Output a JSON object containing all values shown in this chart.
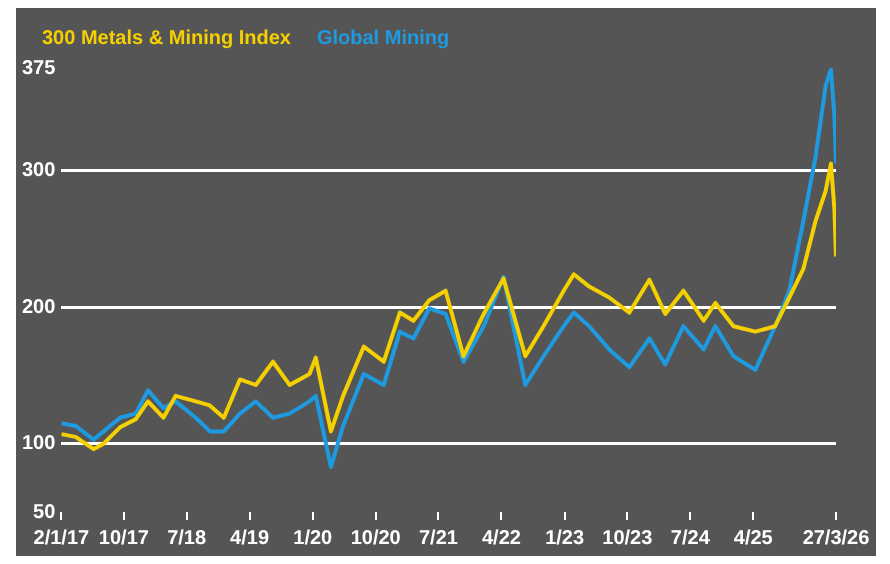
{
  "chart_data": {
    "type": "line",
    "legend": "top",
    "grid": "y",
    "marker": "none",
    "line_style": "solid",
    "x": [
      "2017-01-02",
      "2017-03-05",
      "2017-05-22",
      "2017-07-05",
      "2017-09-14",
      "2017-11-22",
      "2018-01-14",
      "2018-03-22",
      "2018-05-14",
      "2018-08-10",
      "2018-10-10",
      "2018-12-10",
      "2019-02-18",
      "2019-04-28",
      "2019-07-12",
      "2019-09-22",
      "2019-12-18",
      "2020-01-14",
      "2020-03-20",
      "2020-05-12",
      "2020-08-10",
      "2020-11-05",
      "2021-01-14",
      "2021-03-14",
      "2021-05-22",
      "2021-08-01",
      "2021-10-18",
      "2022-01-14",
      "2022-04-10",
      "2022-07-14",
      "2022-10-01",
      "2022-12-28",
      "2023-02-10",
      "2023-04-18",
      "2023-07-14",
      "2023-10-10",
      "2024-01-05",
      "2024-03-14",
      "2024-06-01",
      "2024-08-28",
      "2024-10-18",
      "2025-01-05",
      "2025-04-10",
      "2025-07-05",
      "2025-09-05",
      "2025-11-05",
      "2025-12-28",
      "2026-02-10",
      "2026-03-05",
      "2026-03-20",
      "2026-03-27"
    ],
    "series": [
      {
        "name": "300 Metals & Mining Index",
        "color": "#f5d000",
        "values": [
          107,
          105,
          96,
          100,
          112,
          118,
          131,
          119,
          135,
          131,
          128,
          119,
          147,
          143,
          160,
          143,
          151,
          163,
          109,
          135,
          171,
          160,
          196,
          190,
          205,
          212,
          164,
          195,
          221,
          164,
          186,
          212,
          224,
          215,
          207,
          196,
          220,
          195,
          212,
          190,
          203,
          186,
          182,
          186,
          207,
          228,
          263,
          285,
          305,
          272,
          237
        ]
      },
      {
        "name": "Global Mining",
        "color": "#1e9be0",
        "values": [
          115,
          113,
          103,
          109,
          119,
          122,
          139,
          126,
          131,
          119,
          109,
          109,
          122,
          131,
          119,
          122,
          131,
          135,
          83,
          113,
          151,
          143,
          182,
          177,
          199,
          195,
          160,
          186,
          222,
          143,
          164,
          186,
          196,
          186,
          169,
          156,
          177,
          158,
          186,
          169,
          186,
          164,
          154,
          186,
          212,
          263,
          310,
          362,
          374,
          340,
          305
        ]
      }
    ],
    "ylim": [
      50,
      375
    ],
    "yticks": [
      50,
      100,
      200,
      300,
      375
    ],
    "xlim": [
      "2017-01-02",
      "2026-03-27"
    ],
    "xticks": [
      {
        "value": "2017-01-02",
        "label": "2/1/17"
      },
      {
        "value": "2017-10-01",
        "label": "10/17"
      },
      {
        "value": "2018-07-01",
        "label": "7/18"
      },
      {
        "value": "2019-04-01",
        "label": "4/19"
      },
      {
        "value": "2020-01-01",
        "label": "1/20"
      },
      {
        "value": "2020-10-01",
        "label": "10/20"
      },
      {
        "value": "2021-07-01",
        "label": "7/21"
      },
      {
        "value": "2022-04-01",
        "label": "4/22"
      },
      {
        "value": "2023-01-01",
        "label": "1/23"
      },
      {
        "value": "2023-10-01",
        "label": "10/23"
      },
      {
        "value": "2024-07-01",
        "label": "7/24"
      },
      {
        "value": "2025-04-01",
        "label": "4/25"
      },
      {
        "value": "2026-03-27",
        "label": "27/3/26"
      }
    ]
  }
}
